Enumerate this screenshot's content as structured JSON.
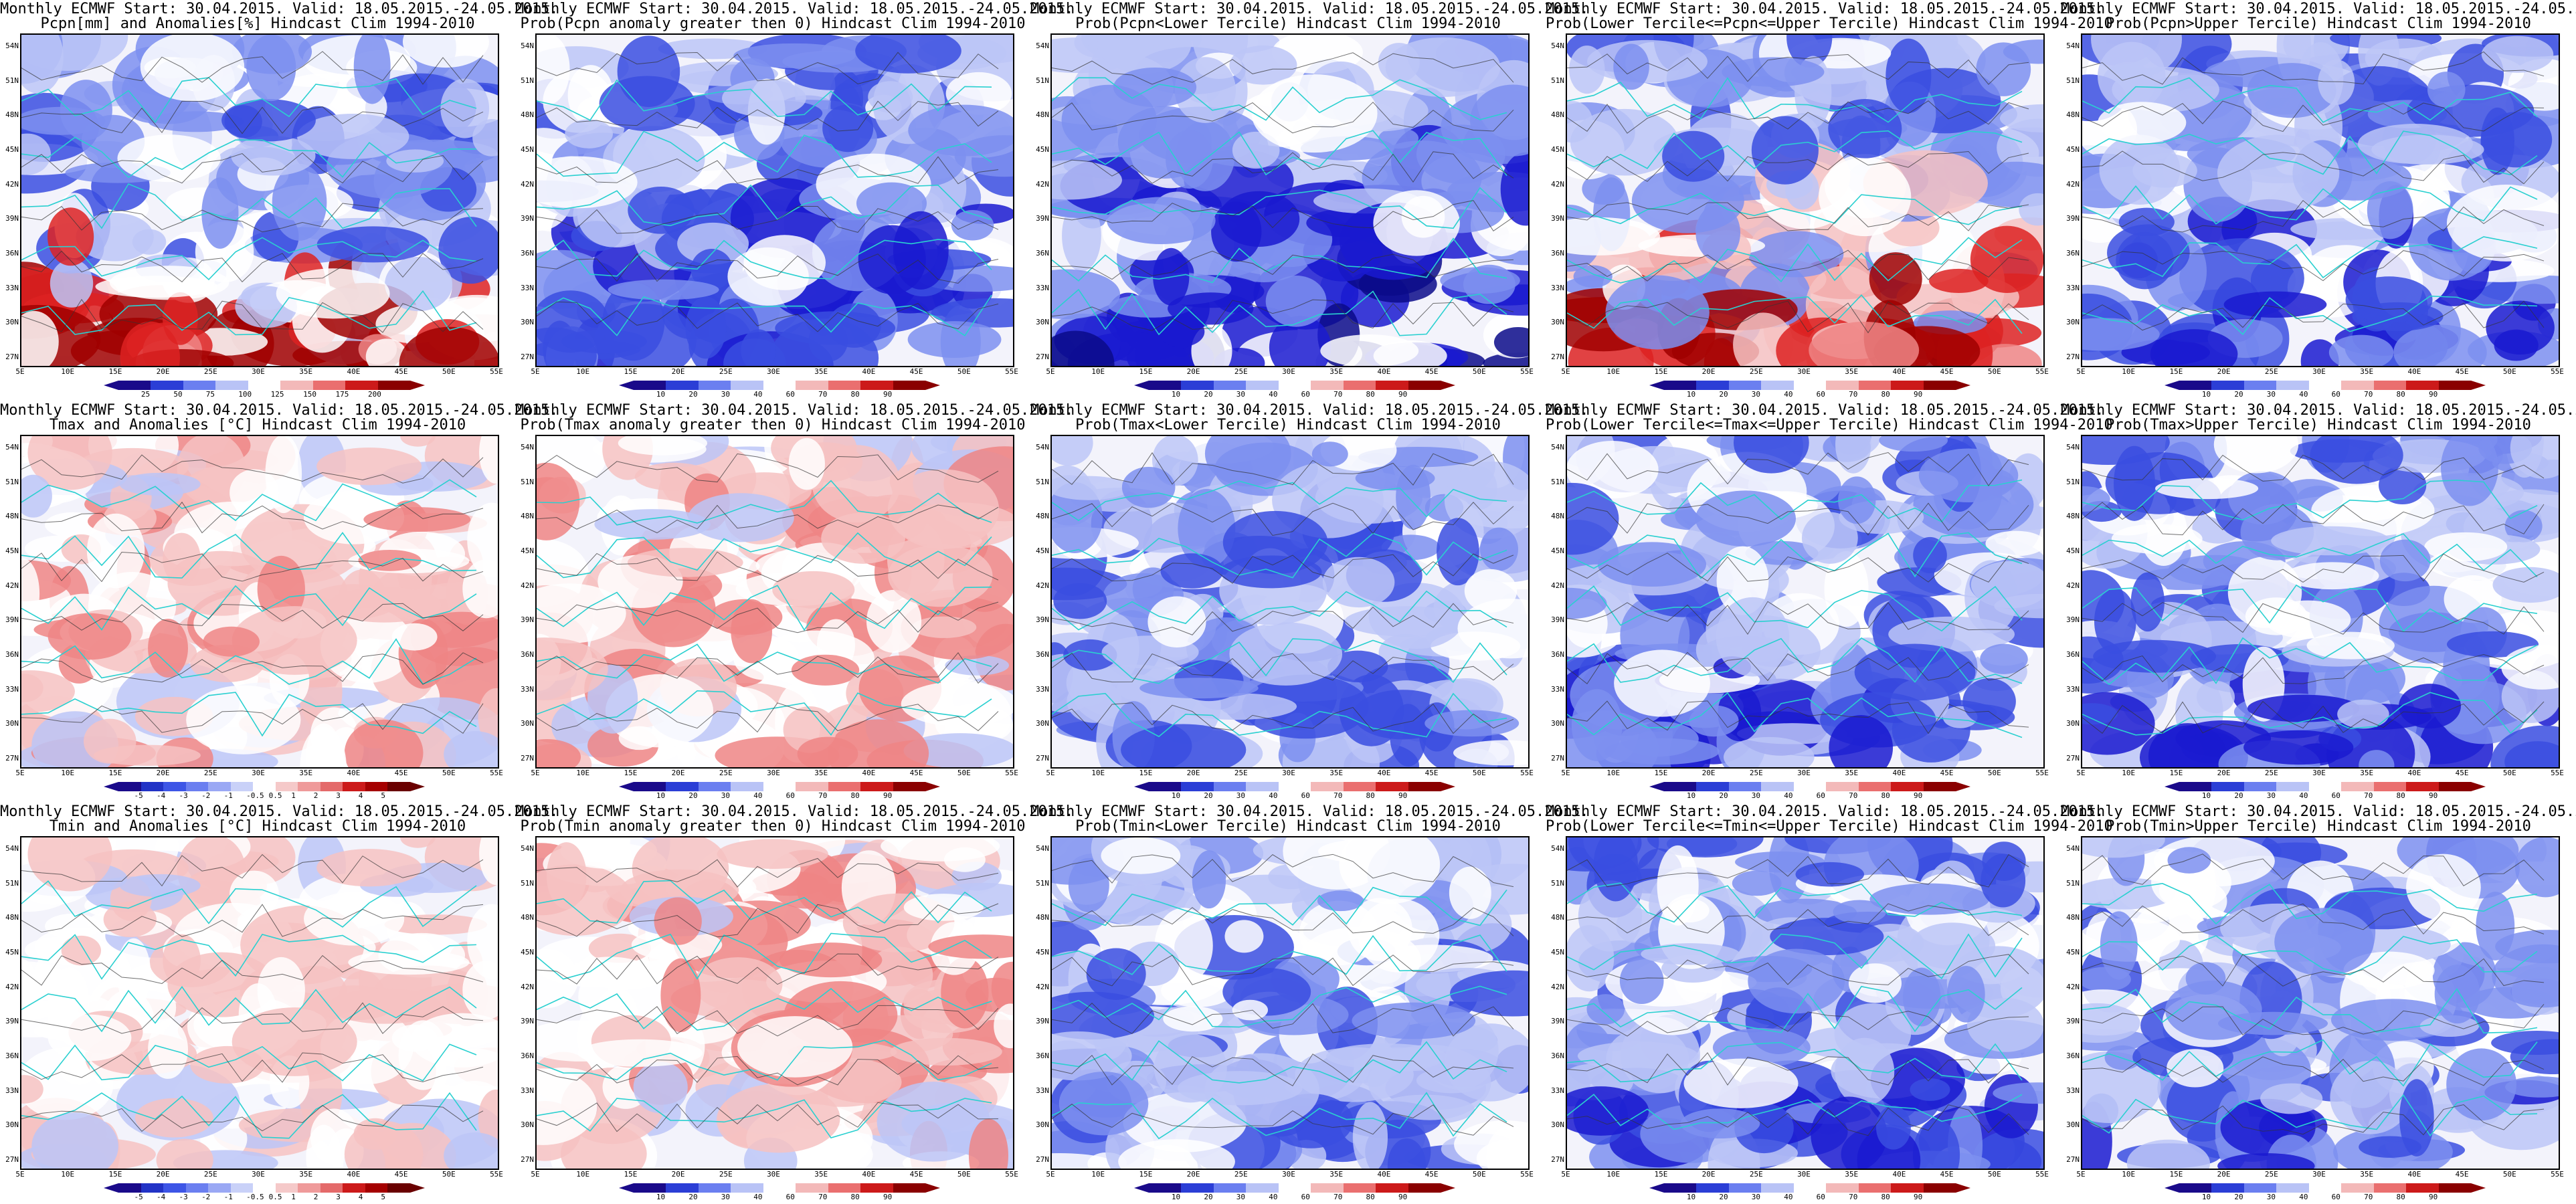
{
  "header_line": "Monthly ECMWF Start: 30.04.2015. Valid: 18.05.2015.-24.05.2015.",
  "lat_ticks": [
    "54N",
    "51N",
    "48N",
    "45N",
    "42N",
    "39N",
    "36N",
    "33N",
    "30N",
    "27N"
  ],
  "lon_ticks": [
    "5E",
    "10E",
    "15E",
    "20E",
    "25E",
    "30E",
    "35E",
    "40E",
    "45E",
    "50E",
    "55E"
  ],
  "legend_scales": {
    "pcpn_anom": [
      "25",
      "50",
      "75",
      "100",
      "125",
      "150",
      "175",
      "200"
    ],
    "prob": [
      "10",
      "20",
      "30",
      "40",
      "60",
      "70",
      "80",
      "90"
    ],
    "temp_anom": [
      "-5",
      "-4",
      "-3",
      "-2",
      "-1",
      "-0.5",
      "0.5",
      "1",
      "2",
      "3",
      "4",
      "5"
    ]
  },
  "colors": {
    "deep_blue": "#1a1ad0",
    "blue": "#3a4de0",
    "mid_blue": "#7d8ff0",
    "light_blue": "#bcc6f7",
    "white": "#ffffff",
    "light_red": "#f6c2c2",
    "mid_red": "#ef8585",
    "red": "#dd2222",
    "deep_red": "#a00000",
    "coast": "#2ad0d0",
    "contour": "#333333"
  },
  "panels": [
    {
      "row": 0,
      "col": 0,
      "title2": "Pcpn[mm] and Anomalies[%] Hindcast Clim 1994-2010",
      "scale": "pcpn_anom",
      "theme": "pcpn"
    },
    {
      "row": 0,
      "col": 1,
      "title2": "Prob(Pcpn anomaly greater then 0) Hindcast Clim 1994-2010",
      "scale": "prob",
      "theme": "blue_south"
    },
    {
      "row": 0,
      "col": 2,
      "title2": "Prob(Pcpn<Lower Tercile) Hindcast Clim 1994-2010",
      "scale": "prob",
      "theme": "deep_south"
    },
    {
      "row": 0,
      "col": 3,
      "title2": "Prob(Lower Tercile<=Pcpn<=Upper Tercile) Hindcast Clim 1994-2010",
      "scale": "prob",
      "theme": "red_south"
    },
    {
      "row": 0,
      "col": 4,
      "title2": "Prob(Pcpn>Upper Tercile) Hindcast Clim 1994-2010",
      "scale": "prob",
      "theme": "blue_south"
    },
    {
      "row": 1,
      "col": 0,
      "title2": "Tmax and Anomalies [°C] Hindcast Clim 1994-2010",
      "scale": "temp_anom",
      "theme": "warm_east"
    },
    {
      "row": 1,
      "col": 1,
      "title2": "Prob(Tmax anomaly greater then 0) Hindcast Clim 1994-2010",
      "scale": "prob",
      "theme": "warm_east"
    },
    {
      "row": 1,
      "col": 2,
      "title2": "Prob(Tmax<Lower Tercile) Hindcast Clim 1994-2010",
      "scale": "prob",
      "theme": "blue_east"
    },
    {
      "row": 1,
      "col": 3,
      "title2": "Prob(Lower Tercile<=Tmax<=Upper Tercile) Hindcast Clim 1994-2010",
      "scale": "prob",
      "theme": "blue_mix"
    },
    {
      "row": 1,
      "col": 4,
      "title2": "Prob(Tmax>Upper Tercile) Hindcast Clim 1994-2010",
      "scale": "prob",
      "theme": "blue_mix"
    },
    {
      "row": 2,
      "col": 0,
      "title2": "Tmin and Anomalies [°C] Hindcast Clim 1994-2010",
      "scale": "temp_anom",
      "theme": "warm_light"
    },
    {
      "row": 2,
      "col": 1,
      "title2": "Prob(Tmin anomaly greater then 0) Hindcast Clim 1994-2010",
      "scale": "prob",
      "theme": "warm_east"
    },
    {
      "row": 2,
      "col": 2,
      "title2": "Prob(Tmin<Lower Tercile) Hindcast Clim 1994-2010",
      "scale": "prob",
      "theme": "blue_east"
    },
    {
      "row": 2,
      "col": 3,
      "title2": "Prob(Lower Tercile<=Tmin<=Upper Tercile) Hindcast Clim 1994-2010",
      "scale": "prob",
      "theme": "blue_mix"
    },
    {
      "row": 2,
      "col": 4,
      "title2": "Prob(Tmin>Upper Tercile) Hindcast Clim 1994-2010",
      "scale": "prob",
      "theme": "blue_mix"
    }
  ]
}
